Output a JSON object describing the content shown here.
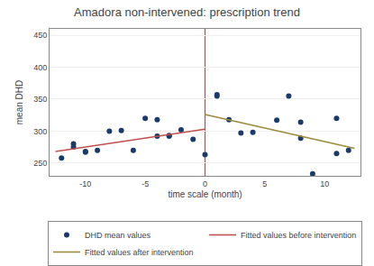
{
  "chart_data": {
    "type": "scatter",
    "title": "Amadora non-intervened: prescription trend",
    "xlabel": "time scale (month)",
    "ylabel": "mean DHD",
    "xlim": [
      -13,
      13
    ],
    "ylim": [
      230,
      460
    ],
    "xticks": [
      -10,
      -5,
      0,
      5,
      10
    ],
    "yticks": [
      250,
      300,
      350,
      400,
      450
    ],
    "grid": "y",
    "legend": "bottom",
    "series": [
      {
        "name": "DHD mean values",
        "type": "scatter",
        "marker": "circle",
        "color": "#1a3a6b",
        "x": [
          -12,
          -11,
          -11,
          -10,
          -10,
          -9,
          -8,
          -7,
          -6,
          -5,
          -4,
          -4,
          -3,
          -3,
          -2,
          -1,
          0,
          1,
          1,
          2,
          3,
          4,
          6,
          7,
          8,
          8,
          9,
          11,
          11,
          12
        ],
        "values": [
          258,
          280,
          275,
          267,
          268,
          270,
          300,
          301,
          270,
          320,
          318,
          292,
          292,
          293,
          302,
          287,
          263,
          357,
          355,
          318,
          297,
          298,
          317,
          355,
          314,
          289,
          233,
          265,
          320,
          270
        ]
      },
      {
        "name": "Fitted values before intervention",
        "type": "line",
        "line_style": "solid",
        "color": "#c0504d",
        "x": [
          -12.5,
          0
        ],
        "values": [
          268,
          303
        ]
      },
      {
        "name": "Fitted values after intervention",
        "type": "line",
        "line_style": "solid",
        "color": "#9c8b3e",
        "x": [
          0,
          12.5
        ],
        "values": [
          326,
          273
        ]
      }
    ],
    "vlines": [
      {
        "x": 0,
        "color": "#c0504d"
      }
    ]
  }
}
